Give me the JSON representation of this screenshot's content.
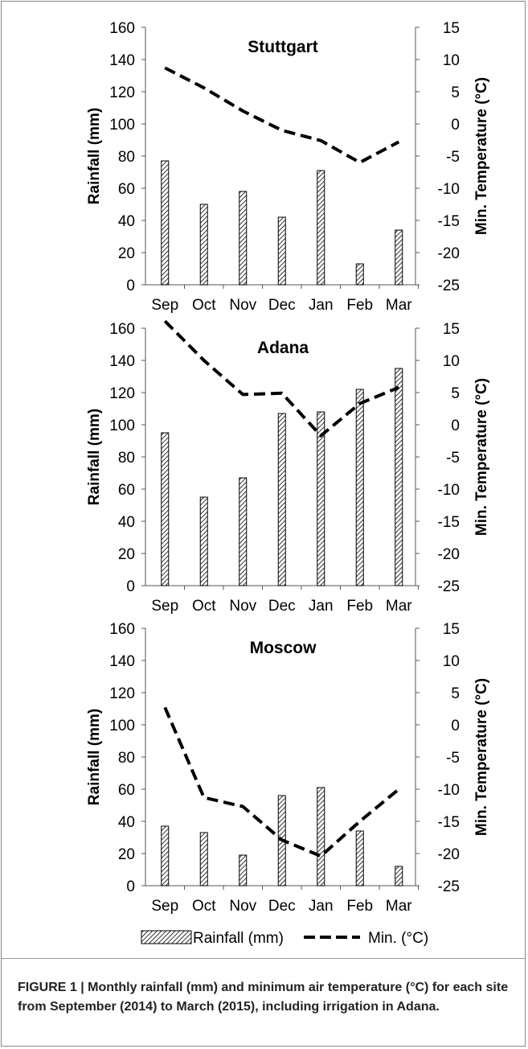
{
  "chart_data": [
    {
      "type": "bar+line",
      "title": "Stuttgart",
      "categories": [
        "Sep",
        "Oct",
        "Nov",
        "Dec",
        "Jan",
        "Feb",
        "Mar"
      ],
      "ylabel": "Rainfall (mm)",
      "y2label": "Min. Temperature (°C)",
      "ylim": [
        0,
        160
      ],
      "y2lim": [
        -25,
        15
      ],
      "yticks": [
        "0",
        "20",
        "40",
        "60",
        "80",
        "100",
        "120",
        "140",
        "160"
      ],
      "y2ticks": [
        "-25",
        "-20",
        "-15",
        "-10",
        "-5",
        "0",
        "5",
        "10",
        "15"
      ],
      "series": [
        {
          "name": "Rainfall (mm)",
          "kind": "bar",
          "axis": "left",
          "values": [
            77,
            50,
            58,
            42,
            71,
            13,
            34
          ]
        },
        {
          "name": "Min. (°C)",
          "kind": "line",
          "axis": "right",
          "values": [
            8.7,
            5.6,
            2.0,
            -1.0,
            -2.6,
            -6.0,
            -2.8
          ]
        }
      ]
    },
    {
      "type": "bar+line",
      "title": "Adana",
      "categories": [
        "Sep",
        "Oct",
        "Nov",
        "Dec",
        "Jan",
        "Feb",
        "Mar"
      ],
      "ylabel": "Rainfall (mm)",
      "y2label": "Min. Temperature (°C)",
      "ylim": [
        0,
        160
      ],
      "y2lim": [
        -25,
        15
      ],
      "yticks": [
        "0",
        "20",
        "40",
        "60",
        "80",
        "100",
        "120",
        "140",
        "160"
      ],
      "y2ticks": [
        "-25",
        "-20",
        "-15",
        "-10",
        "-5",
        "0",
        "5",
        "10",
        "15"
      ],
      "series": [
        {
          "name": "Rainfall (mm)",
          "kind": "bar",
          "axis": "left",
          "values": [
            95,
            55,
            67,
            107,
            108,
            122,
            135
          ]
        },
        {
          "name": "Min. (°C)",
          "kind": "line",
          "axis": "right",
          "values": [
            16.1,
            10.0,
            4.7,
            4.9,
            -1.7,
            3.3,
            5.8
          ]
        }
      ]
    },
    {
      "type": "bar+line",
      "title": "Moscow",
      "categories": [
        "Sep",
        "Oct",
        "Nov",
        "Dec",
        "Jan",
        "Feb",
        "Mar"
      ],
      "ylabel": "Rainfall (mm)",
      "y2label": "Min. Temperature (°C)",
      "ylim": [
        0,
        160
      ],
      "y2lim": [
        -25,
        15
      ],
      "yticks": [
        "0",
        "20",
        "40",
        "60",
        "80",
        "100",
        "120",
        "140",
        "160"
      ],
      "y2ticks": [
        "-25",
        "-20",
        "-15",
        "-10",
        "-5",
        "0",
        "5",
        "10",
        "15"
      ],
      "series": [
        {
          "name": "Rainfall (mm)",
          "kind": "bar",
          "axis": "left",
          "values": [
            37,
            33,
            19,
            56,
            61,
            34,
            12
          ]
        },
        {
          "name": "Min. (°C)",
          "kind": "line",
          "axis": "right",
          "values": [
            2.7,
            -11.3,
            -12.7,
            -17.9,
            -20.4,
            -15.0,
            -10.0
          ]
        }
      ]
    }
  ],
  "legend": {
    "bar_label": "Rainfall (mm)",
    "line_label": "Min. (°C)",
    "placement": "bottom-center"
  },
  "caption": {
    "text": "FIGURE 1 | Monthly rainfall (mm) and minimum air temperature (°C) for each site from September (2014) to March (2015), including irrigation in Adana."
  },
  "colors": {
    "bar_stroke": "#000000",
    "bar_hatch": "#000000",
    "line": "#000000",
    "axis": "#555555",
    "caption_text": "#222222"
  }
}
